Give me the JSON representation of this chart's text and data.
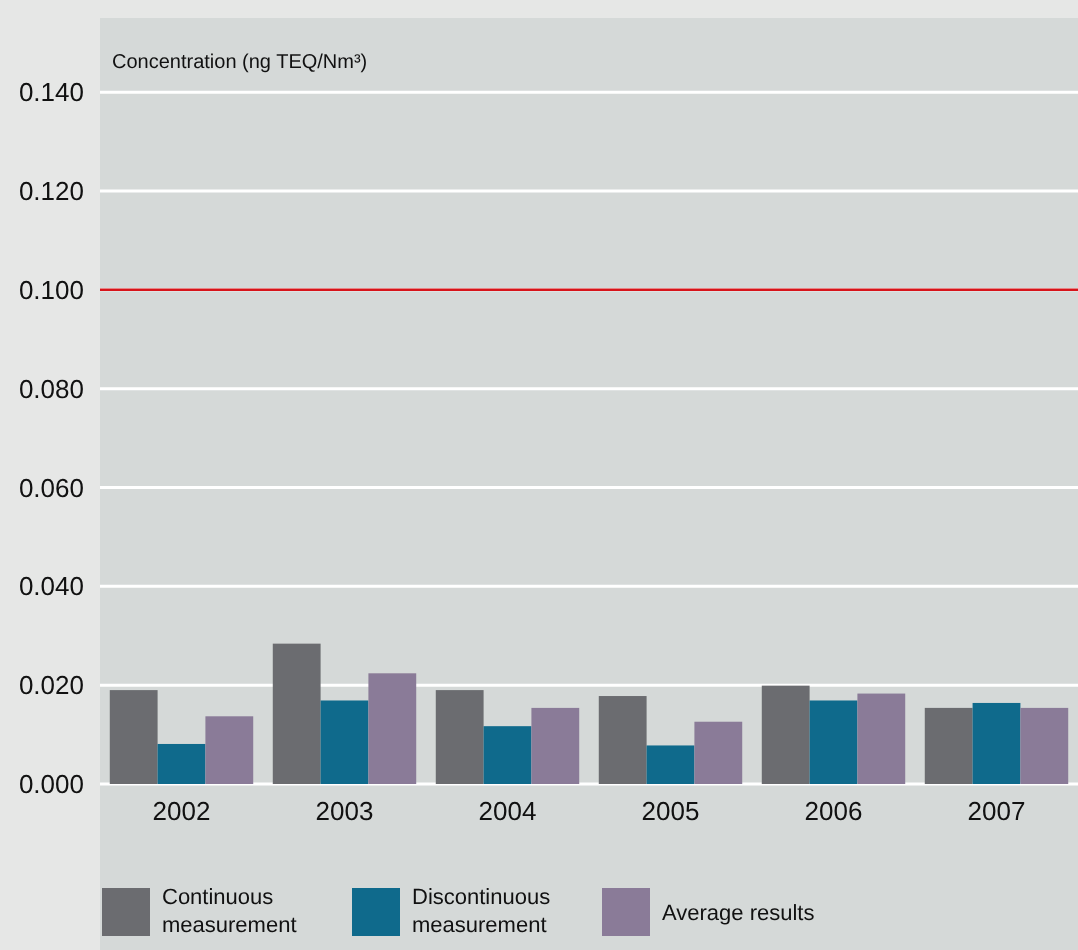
{
  "chart_data": {
    "type": "bar",
    "ylabel": "Concentration (ng TEQ/Nm³)",
    "categories": [
      "2002",
      "2003",
      "2004",
      "2005",
      "2006",
      "2007"
    ],
    "series": [
      {
        "name": "Continuous measurement",
        "color": "#6b6c70",
        "values": [
          0.019,
          0.0284,
          0.019,
          0.0178,
          0.0199,
          0.0154
        ]
      },
      {
        "name": "Discontinuous measurement",
        "color": "#0f6a8c",
        "values": [
          0.0081,
          0.0169,
          0.0117,
          0.0078,
          0.0169,
          0.0164
        ]
      },
      {
        "name": "Average results",
        "color": "#8a7b98",
        "values": [
          0.0137,
          0.0224,
          0.0154,
          0.0126,
          0.0183,
          0.0154
        ]
      }
    ],
    "ylim": [
      0,
      0.155
    ],
    "yticks": [
      {
        "value": 0,
        "label": "0.000"
      },
      {
        "value": 0.02,
        "label": "0.020"
      },
      {
        "value": 0.04,
        "label": "0.040"
      },
      {
        "value": 0.06,
        "label": "0.060"
      },
      {
        "value": 0.08,
        "label": "0.080"
      },
      {
        "value": 0.1,
        "label": "0.100"
      },
      {
        "value": 0.12,
        "label": "0.120"
      },
      {
        "value": 0.14,
        "label": "0.140"
      }
    ],
    "grid": "y",
    "legend": "bottom left",
    "ref_lines": [
      {
        "axis": "y",
        "value": 0.1,
        "color": "#d7141a"
      }
    ]
  }
}
